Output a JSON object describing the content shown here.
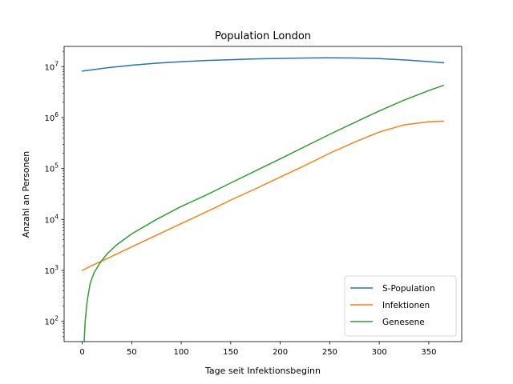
{
  "chart_data": {
    "type": "line",
    "title": "Population London",
    "xlabel": "Tage seit Infektionsbeginn",
    "ylabel": "Anzahl an Personen",
    "xscale": "linear",
    "yscale": "log",
    "xlim": [
      -18.25,
      383.25
    ],
    "ylim": [
      40,
      25000000
    ],
    "xticks": [
      0,
      50,
      100,
      150,
      200,
      250,
      300,
      350
    ],
    "xtick_labels": [
      "0",
      "50",
      "100",
      "150",
      "200",
      "250",
      "300",
      "350"
    ],
    "yticks": [
      100,
      1000,
      10000,
      100000,
      1000000,
      10000000
    ],
    "ytick_labels": [
      {
        "base": "10",
        "exp": "2"
      },
      {
        "base": "10",
        "exp": "3"
      },
      {
        "base": "10",
        "exp": "4"
      },
      {
        "base": "10",
        "exp": "5"
      },
      {
        "base": "10",
        "exp": "6"
      },
      {
        "base": "10",
        "exp": "7"
      }
    ],
    "grid": false,
    "legend_position": "lower-right",
    "series": [
      {
        "name": "S-Population",
        "color": "#1f77b4",
        "x": [
          0,
          25,
          50,
          75,
          100,
          125,
          150,
          175,
          200,
          225,
          250,
          275,
          300,
          325,
          350,
          365
        ],
        "y": [
          8200000,
          9500000,
          10700000,
          11700000,
          12500000,
          13200000,
          13700000,
          14200000,
          14500000,
          14800000,
          14900000,
          14800000,
          14400000,
          13600000,
          12600000,
          11900000
        ]
      },
      {
        "name": "Infektionen",
        "color": "#ff7f0e",
        "x": [
          0,
          10,
          25,
          50,
          75,
          100,
          125,
          150,
          175,
          200,
          225,
          250,
          275,
          300,
          325,
          350,
          365
        ],
        "y": [
          1000,
          1250,
          1700,
          2900,
          4900,
          8300,
          14000,
          24000,
          40000,
          68000,
          115000,
          200000,
          330000,
          520000,
          720000,
          830000,
          850000
        ]
      },
      {
        "name": "Genesene",
        "color": "#2ca02c",
        "x": [
          2,
          3,
          5,
          8,
          12,
          18,
          25,
          35,
          50,
          75,
          100,
          125,
          150,
          175,
          200,
          225,
          250,
          275,
          300,
          325,
          350,
          365
        ],
        "y": [
          40,
          100,
          250,
          550,
          900,
          1400,
          2100,
          3200,
          5200,
          10000,
          18000,
          30000,
          52000,
          90000,
          155000,
          270000,
          470000,
          800000,
          1350000,
          2200000,
          3400000,
          4300000
        ]
      }
    ]
  }
}
